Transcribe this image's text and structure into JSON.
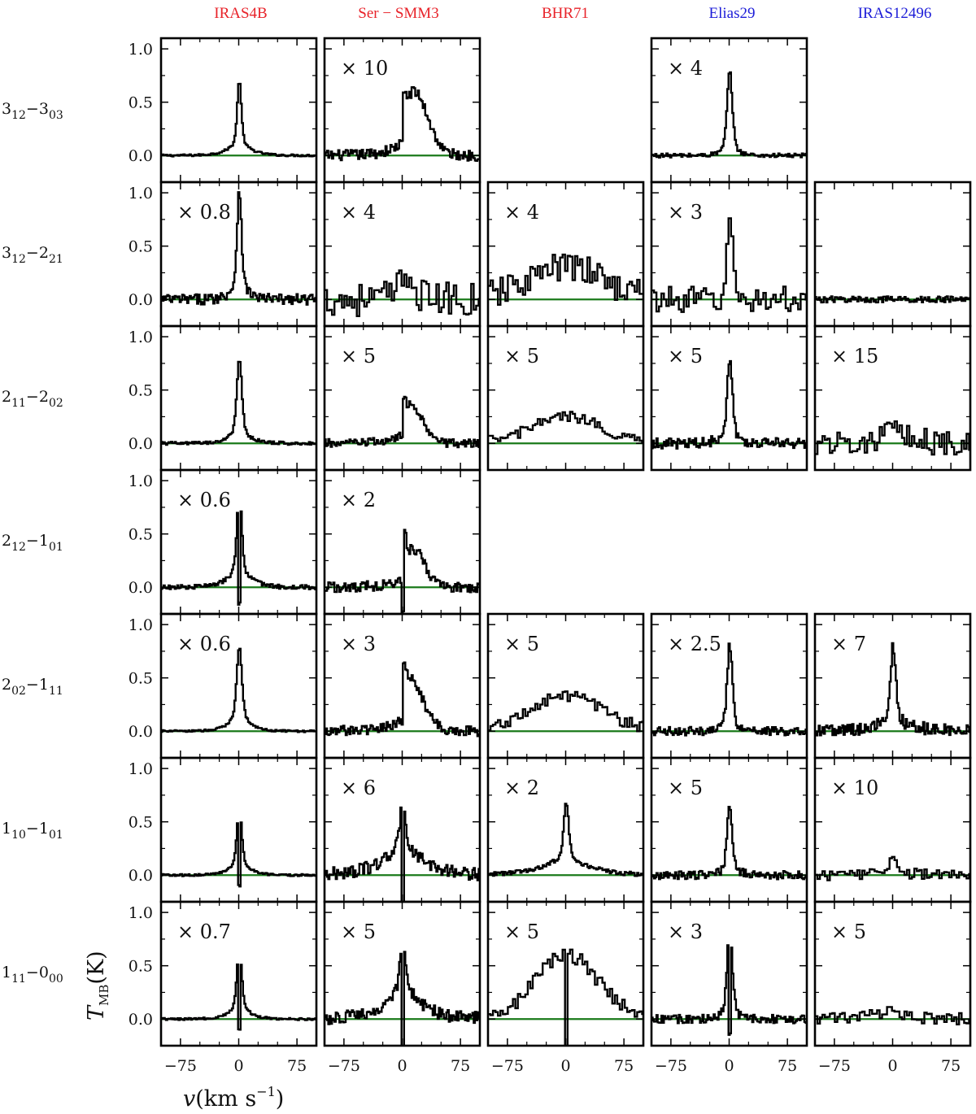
{
  "chart_data": {
    "type": "line",
    "sources": [
      {
        "name": "IRAS4B",
        "color": "#e8232a"
      },
      {
        "name": "Ser − SMM3",
        "color": "#e8232a"
      },
      {
        "name": "BHR71",
        "color": "#e8232a"
      },
      {
        "name": "Elias29",
        "color": "#1c1cd8"
      },
      {
        "name": "IRAS12496",
        "color": "#1c1cd8"
      }
    ],
    "transitions": [
      {
        "main": "3",
        "sub": "12",
        "main2": "3",
        "sub2": "03"
      },
      {
        "main": "3",
        "sub": "12",
        "main2": "2",
        "sub2": "21"
      },
      {
        "main": "2",
        "sub": "11",
        "main2": "2",
        "sub2": "02"
      },
      {
        "main": "2",
        "sub": "12",
        "main2": "1",
        "sub2": "01"
      },
      {
        "main": "2",
        "sub": "02",
        "main2": "1",
        "sub2": "11"
      },
      {
        "main": "1",
        "sub": "10",
        "main2": "1",
        "sub2": "01"
      },
      {
        "main": "1",
        "sub": "11",
        "main2": "0",
        "sub2": "00"
      }
    ],
    "xlim": [
      -100,
      100
    ],
    "ylim": [
      -0.25,
      1.1
    ],
    "xticks": [
      -75,
      0,
      75
    ],
    "xtick_labels": [
      "−75",
      "0",
      "75"
    ],
    "yticks": [
      0.0,
      0.5,
      1.0
    ],
    "ytick_labels": [
      "0.0",
      "0.5",
      "1.0"
    ],
    "xlabel_parts": {
      "var": "v",
      "unit": "(km s",
      "exp": "−1",
      "close": ")"
    },
    "ylabel_parts": {
      "var": "T",
      "sub": "MB",
      "unit": "(K)"
    },
    "baseline_color": "#1a7a1a",
    "line_color": "#000000",
    "panels": [
      {
        "row": 0,
        "col": 0,
        "factor": "",
        "shape": "outflow",
        "peak": 0.7,
        "narrow": 0.1,
        "broad": 0.18,
        "bwidth": 14,
        "absorb": 0.0,
        "noise": 0.01,
        "skew": 0.0
      },
      {
        "row": 0,
        "col": 1,
        "factor": "× 10",
        "shape": "redwing",
        "peak": 0.62,
        "narrow": 0.0,
        "broad": 0.5,
        "bwidth": 18,
        "absorb": 0.0,
        "noise": 0.05,
        "skew": 14
      },
      {
        "row": 0,
        "col": 3,
        "factor": "× 4",
        "shape": "outflow",
        "peak": 0.8,
        "narrow": 0.5,
        "broad": 0.2,
        "bwidth": 8,
        "absorb": 0.0,
        "noise": 0.02,
        "skew": 0.0
      },
      {
        "row": 1,
        "col": 0,
        "factor": "× 0.8",
        "shape": "outflow",
        "peak": 1.05,
        "narrow": 0.3,
        "broad": 0.25,
        "bwidth": 10,
        "absorb": 0.0,
        "noise": 0.05,
        "skew": 0.0
      },
      {
        "row": 1,
        "col": 1,
        "factor": "× 4",
        "shape": "noisy",
        "peak": 0.35,
        "narrow": 0.0,
        "broad": 0.3,
        "bwidth": 10,
        "absorb": 0.0,
        "noise": 0.16,
        "skew": 14
      },
      {
        "row": 1,
        "col": 2,
        "factor": "× 4",
        "shape": "broad",
        "peak": 0.5,
        "narrow": 0.0,
        "broad": 0.3,
        "bwidth": 50,
        "absorb": 0.0,
        "noise": 0.14,
        "skew": 0.0
      },
      {
        "row": 1,
        "col": 3,
        "factor": "× 3",
        "shape": "noisy",
        "peak": 0.9,
        "narrow": 0.8,
        "broad": 0.0,
        "bwidth": 5,
        "absorb": 0.0,
        "noise": 0.12,
        "skew": 0.0
      },
      {
        "row": 1,
        "col": 4,
        "factor": "",
        "shape": "flat",
        "peak": 0.0,
        "narrow": 0.0,
        "broad": 0.0,
        "bwidth": 5,
        "absorb": 0.0,
        "noise": 0.03,
        "skew": 0.0
      },
      {
        "row": 2,
        "col": 0,
        "factor": "",
        "shape": "outflow",
        "peak": 0.8,
        "narrow": 0.45,
        "broad": 0.2,
        "bwidth": 12,
        "absorb": 0.0,
        "noise": 0.015,
        "skew": 0.0
      },
      {
        "row": 2,
        "col": 1,
        "factor": "× 5",
        "shape": "redwing",
        "peak": 0.45,
        "narrow": 0.0,
        "broad": 0.3,
        "bwidth": 16,
        "absorb": 0.0,
        "noise": 0.04,
        "skew": 10
      },
      {
        "row": 2,
        "col": 2,
        "factor": "× 5",
        "shape": "broad",
        "peak": 0.35,
        "narrow": 0.0,
        "broad": 0.25,
        "bwidth": 45,
        "absorb": 0.0,
        "noise": 0.05,
        "skew": 0.0
      },
      {
        "row": 2,
        "col": 3,
        "factor": "× 5",
        "shape": "outflow",
        "peak": 0.8,
        "narrow": 0.5,
        "broad": 0.2,
        "bwidth": 10,
        "absorb": 0.0,
        "noise": 0.05,
        "skew": 0.0
      },
      {
        "row": 2,
        "col": 4,
        "factor": "× 15",
        "shape": "noisy",
        "peak": 0.65,
        "narrow": 0.0,
        "broad": 0.1,
        "bwidth": 25,
        "absorb": 0.0,
        "noise": 0.12,
        "skew": 0.0
      },
      {
        "row": 3,
        "col": 0,
        "factor": "× 0.6",
        "shape": "absorb",
        "peak": 0.95,
        "narrow": 0.4,
        "broad": 0.25,
        "bwidth": 14,
        "absorb": 0.15,
        "noise": 0.02,
        "skew": 0.0
      },
      {
        "row": 3,
        "col": 1,
        "factor": "× 2",
        "shape": "redwing",
        "peak": 0.55,
        "narrow": 0.0,
        "broad": 0.3,
        "bwidth": 16,
        "absorb": 0.25,
        "noise": 0.05,
        "skew": 12
      },
      {
        "row": 4,
        "col": 0,
        "factor": "× 0.6",
        "shape": "outflow",
        "peak": 0.8,
        "narrow": 0.45,
        "broad": 0.25,
        "bwidth": 12,
        "absorb": 0.0,
        "noise": 0.01,
        "skew": 0.0
      },
      {
        "row": 4,
        "col": 1,
        "factor": "× 3",
        "shape": "redwing",
        "peak": 0.55,
        "narrow": 0.0,
        "broad": 0.45,
        "bwidth": 18,
        "absorb": 0.0,
        "noise": 0.05,
        "skew": 6
      },
      {
        "row": 4,
        "col": 2,
        "factor": "× 5",
        "shape": "broad",
        "peak": 0.45,
        "narrow": 0.0,
        "broad": 0.32,
        "bwidth": 48,
        "absorb": 0.0,
        "noise": 0.06,
        "skew": 0.0
      },
      {
        "row": 4,
        "col": 3,
        "factor": "× 2.5",
        "shape": "outflow",
        "peak": 0.82,
        "narrow": 0.55,
        "broad": 0.15,
        "bwidth": 9,
        "absorb": 0.0,
        "noise": 0.04,
        "skew": 0.0
      },
      {
        "row": 4,
        "col": 4,
        "factor": "× 7",
        "shape": "outflow",
        "peak": 0.8,
        "narrow": 0.6,
        "broad": 0.15,
        "bwidth": 25,
        "absorb": 0.0,
        "noise": 0.06,
        "skew": 0.0
      },
      {
        "row": 5,
        "col": 0,
        "factor": "",
        "shape": "absorb",
        "peak": 0.65,
        "narrow": 0.25,
        "broad": 0.2,
        "bwidth": 12,
        "absorb": 0.1,
        "noise": 0.01,
        "skew": 0.0
      },
      {
        "row": 5,
        "col": 1,
        "factor": "× 6",
        "shape": "absorb",
        "peak": 0.75,
        "narrow": 0.3,
        "broad": 0.35,
        "bwidth": 28,
        "absorb": 0.55,
        "noise": 0.06,
        "skew": 0.0
      },
      {
        "row": 5,
        "col": 2,
        "factor": "× 2",
        "shape": "outflow",
        "peak": 0.68,
        "narrow": 0.3,
        "broad": 0.22,
        "bwidth": 30,
        "absorb": 0.0,
        "noise": 0.02,
        "skew": 0.0
      },
      {
        "row": 5,
        "col": 3,
        "factor": "× 5",
        "shape": "outflow",
        "peak": 0.65,
        "narrow": 0.4,
        "broad": 0.15,
        "bwidth": 9,
        "absorb": 0.0,
        "noise": 0.04,
        "skew": 0.0
      },
      {
        "row": 5,
        "col": 4,
        "factor": "× 10",
        "shape": "noisy",
        "peak": 0.28,
        "narrow": 0.15,
        "broad": 0.05,
        "bwidth": 20,
        "absorb": 0.0,
        "noise": 0.05,
        "skew": 0.0
      },
      {
        "row": 6,
        "col": 0,
        "factor": "× 0.7",
        "shape": "absorb",
        "peak": 0.68,
        "narrow": 0.3,
        "broad": 0.2,
        "bwidth": 12,
        "absorb": 0.1,
        "noise": 0.01,
        "skew": 0.0
      },
      {
        "row": 6,
        "col": 1,
        "factor": "× 5",
        "shape": "absorb",
        "peak": 0.72,
        "narrow": 0.25,
        "broad": 0.4,
        "bwidth": 24,
        "absorb": 0.4,
        "noise": 0.06,
        "skew": 0.0
      },
      {
        "row": 6,
        "col": 2,
        "factor": "× 5",
        "shape": "broad",
        "peak": 0.78,
        "narrow": 0.0,
        "broad": 0.6,
        "bwidth": 40,
        "absorb": 0.4,
        "noise": 0.07,
        "skew": 0.0
      },
      {
        "row": 6,
        "col": 3,
        "factor": "× 3",
        "shape": "absorb",
        "peak": 0.85,
        "narrow": 0.6,
        "broad": 0.15,
        "bwidth": 10,
        "absorb": 0.15,
        "noise": 0.04,
        "skew": 0.0
      },
      {
        "row": 6,
        "col": 4,
        "factor": "× 5",
        "shape": "noisy",
        "peak": 0.2,
        "narrow": 0.0,
        "broad": 0.08,
        "bwidth": 25,
        "absorb": 0.0,
        "noise": 0.06,
        "skew": 0.0
      }
    ]
  }
}
